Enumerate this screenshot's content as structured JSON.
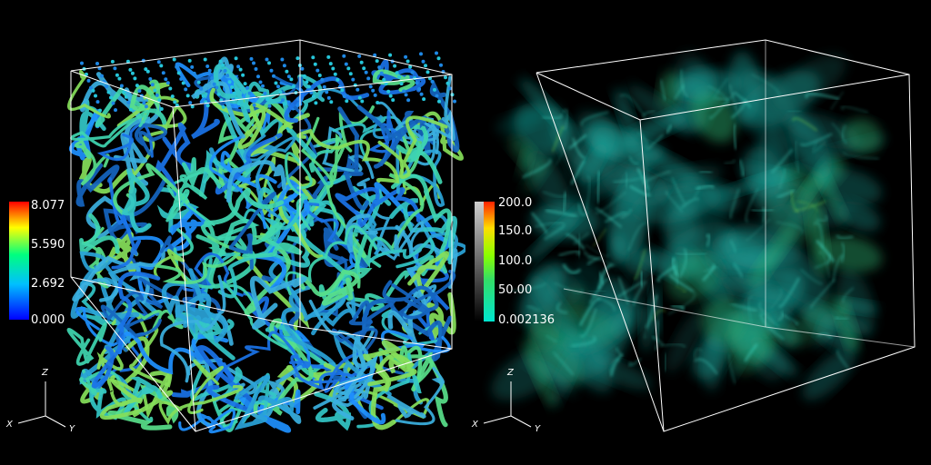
{
  "left_view": {
    "colorbar": {
      "colors": [
        "#0000ff",
        "#00bfff",
        "#00ff7f",
        "#ffff00",
        "#ff0000"
      ],
      "ticks": [
        "8.077",
        "5.590",
        "2.692",
        "0.000"
      ]
    },
    "axes": {
      "z": "Z",
      "x": "X",
      "y": "Y"
    }
  },
  "right_view": {
    "colorbar": {
      "colors": [
        "#00e5d0",
        "#33dd66",
        "#88ff00",
        "#ffdd00",
        "#ff2200"
      ],
      "ticks": [
        "200.0",
        "150.0",
        "100.0",
        "50.00",
        "0.002136"
      ]
    },
    "axes": {
      "z": "Z",
      "x": "X",
      "y": "Y"
    }
  }
}
